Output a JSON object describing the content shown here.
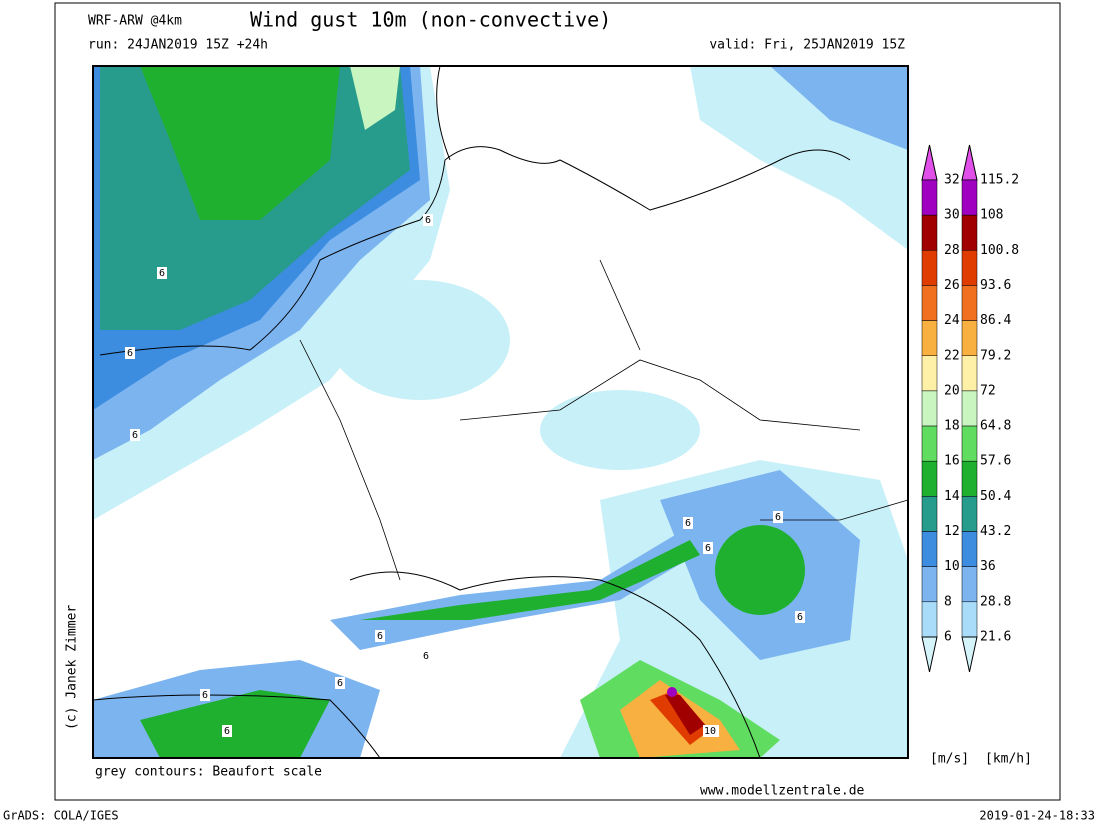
{
  "header": {
    "model": "WRF-ARW @4km",
    "title": "Wind gust 10m (non-convective)",
    "run": "run: 24JAN2019 15Z +24h",
    "valid": "valid: Fri, 25JAN2019 15Z"
  },
  "legend": {
    "ms_labels": [
      "32",
      "30",
      "28",
      "26",
      "24",
      "22",
      "20",
      "18",
      "16",
      "14",
      "12",
      "10",
      "8",
      "6"
    ],
    "kmh_labels": [
      "115.2",
      "108",
      "100.8",
      "93.6",
      "86.4",
      "79.2",
      "72",
      "64.8",
      "57.6",
      "50.4",
      "43.2",
      "36",
      "28.8",
      "21.6"
    ],
    "colors": [
      "#a000c0",
      "#a00000",
      "#e03c00",
      "#f07020",
      "#f8b040",
      "#fff0a8",
      "#c8f5c0",
      "#60dc60",
      "#20b030",
      "#289c8c",
      "#3c8ce0",
      "#7cb4f0",
      "#a8dcf8"
    ],
    "top_color": "#e050e8",
    "bottom_color": "#d4f4fa",
    "unit_ms": "[m/s]",
    "unit_kmh": "[km/h]"
  },
  "map": {
    "contour_labels": [
      "6",
      "6",
      "6",
      "6",
      "6",
      "6",
      "6",
      "6",
      "6",
      "6",
      "6",
      "6",
      "6",
      "10"
    ]
  },
  "footer": {
    "contours_note": "grey contours: Beaufort scale",
    "website": "www.modellzentrale.de",
    "copyright": "(c) Janek Zimmer",
    "software": "GrADS: COLA/IGES",
    "timestamp": "2019-01-24-18:33"
  }
}
